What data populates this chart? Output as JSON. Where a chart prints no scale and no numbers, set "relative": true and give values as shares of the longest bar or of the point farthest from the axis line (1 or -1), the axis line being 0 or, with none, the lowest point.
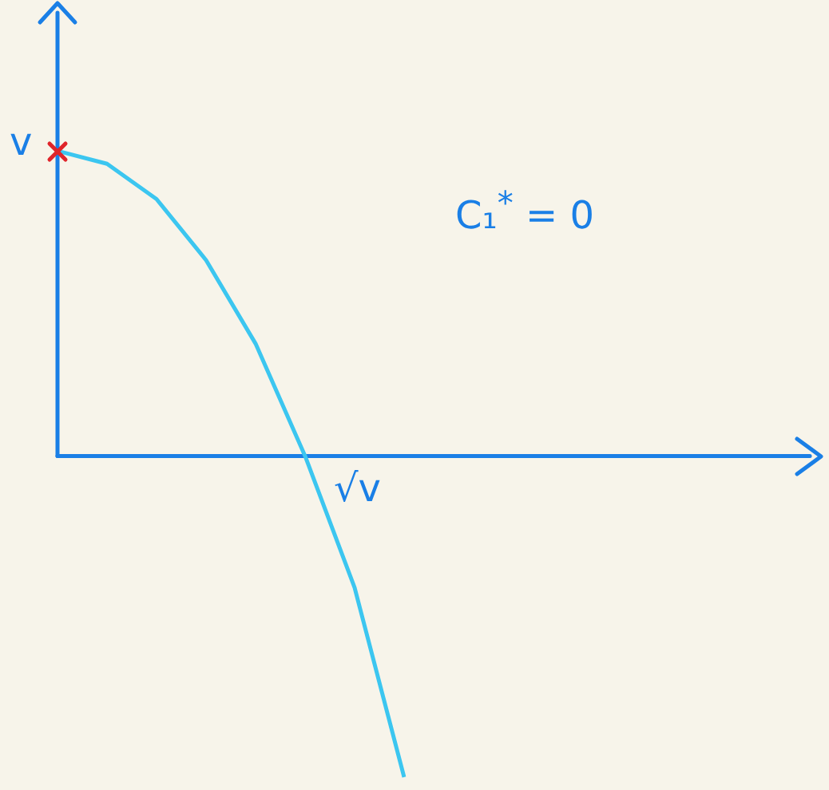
{
  "chart_data": {
    "type": "line",
    "relative": true,
    "categories": [
      null,
      null,
      null,
      null,
      null,
      null,
      null,
      null
    ],
    "series": [
      {
        "color": "#3cc6f0",
        "values": [
          0.95,
          0.91,
          0.8,
          0.61,
          0.35,
          0,
          -0.41,
          -1
        ]
      }
    ],
    "annotations": [
      "v",
      "√v",
      "C₁$^{*}$ = 0"
    ],
    "legend": false
  }
}
